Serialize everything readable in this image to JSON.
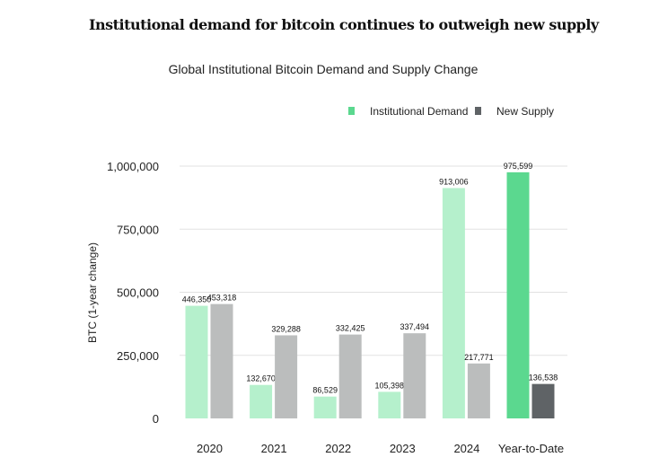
{
  "headline": "Institutional demand for bitcoin continues to outweigh new supply",
  "chart_data": {
    "type": "bar",
    "title": "Global Institutional Bitcoin Demand and Supply Change",
    "xlabel": "",
    "ylabel": "BTC (1-year change)",
    "ylim": [
      0,
      1000000
    ],
    "yticks": [
      0,
      250000,
      500000,
      750000,
      1000000
    ],
    "ytick_labels": [
      "0",
      "250,000",
      "500,000",
      "750,000",
      "1,000,000"
    ],
    "grid": true,
    "legend_position": "top-right",
    "categories": [
      "2020",
      "2021",
      "2022",
      "2023",
      "2024",
      "Year-to-Date"
    ],
    "series": [
      {
        "name": "Institutional Demand",
        "color": "#b5f0cc",
        "highlight_color": "#5bd88f",
        "values": [
          446350,
          132670,
          86529,
          105398,
          913006,
          975599
        ],
        "labels": [
          "446,350",
          "132,670",
          "86,529",
          "105,398",
          "913,006",
          "975,599"
        ]
      },
      {
        "name": "New Supply",
        "color": "#bbbdbd",
        "highlight_color": "#5f6366",
        "values": [
          453318,
          329288,
          332425,
          337494,
          217771,
          136538
        ],
        "labels": [
          "453,318",
          "329,288",
          "332,425",
          "337,494",
          "217,771",
          "136,538"
        ]
      }
    ]
  }
}
